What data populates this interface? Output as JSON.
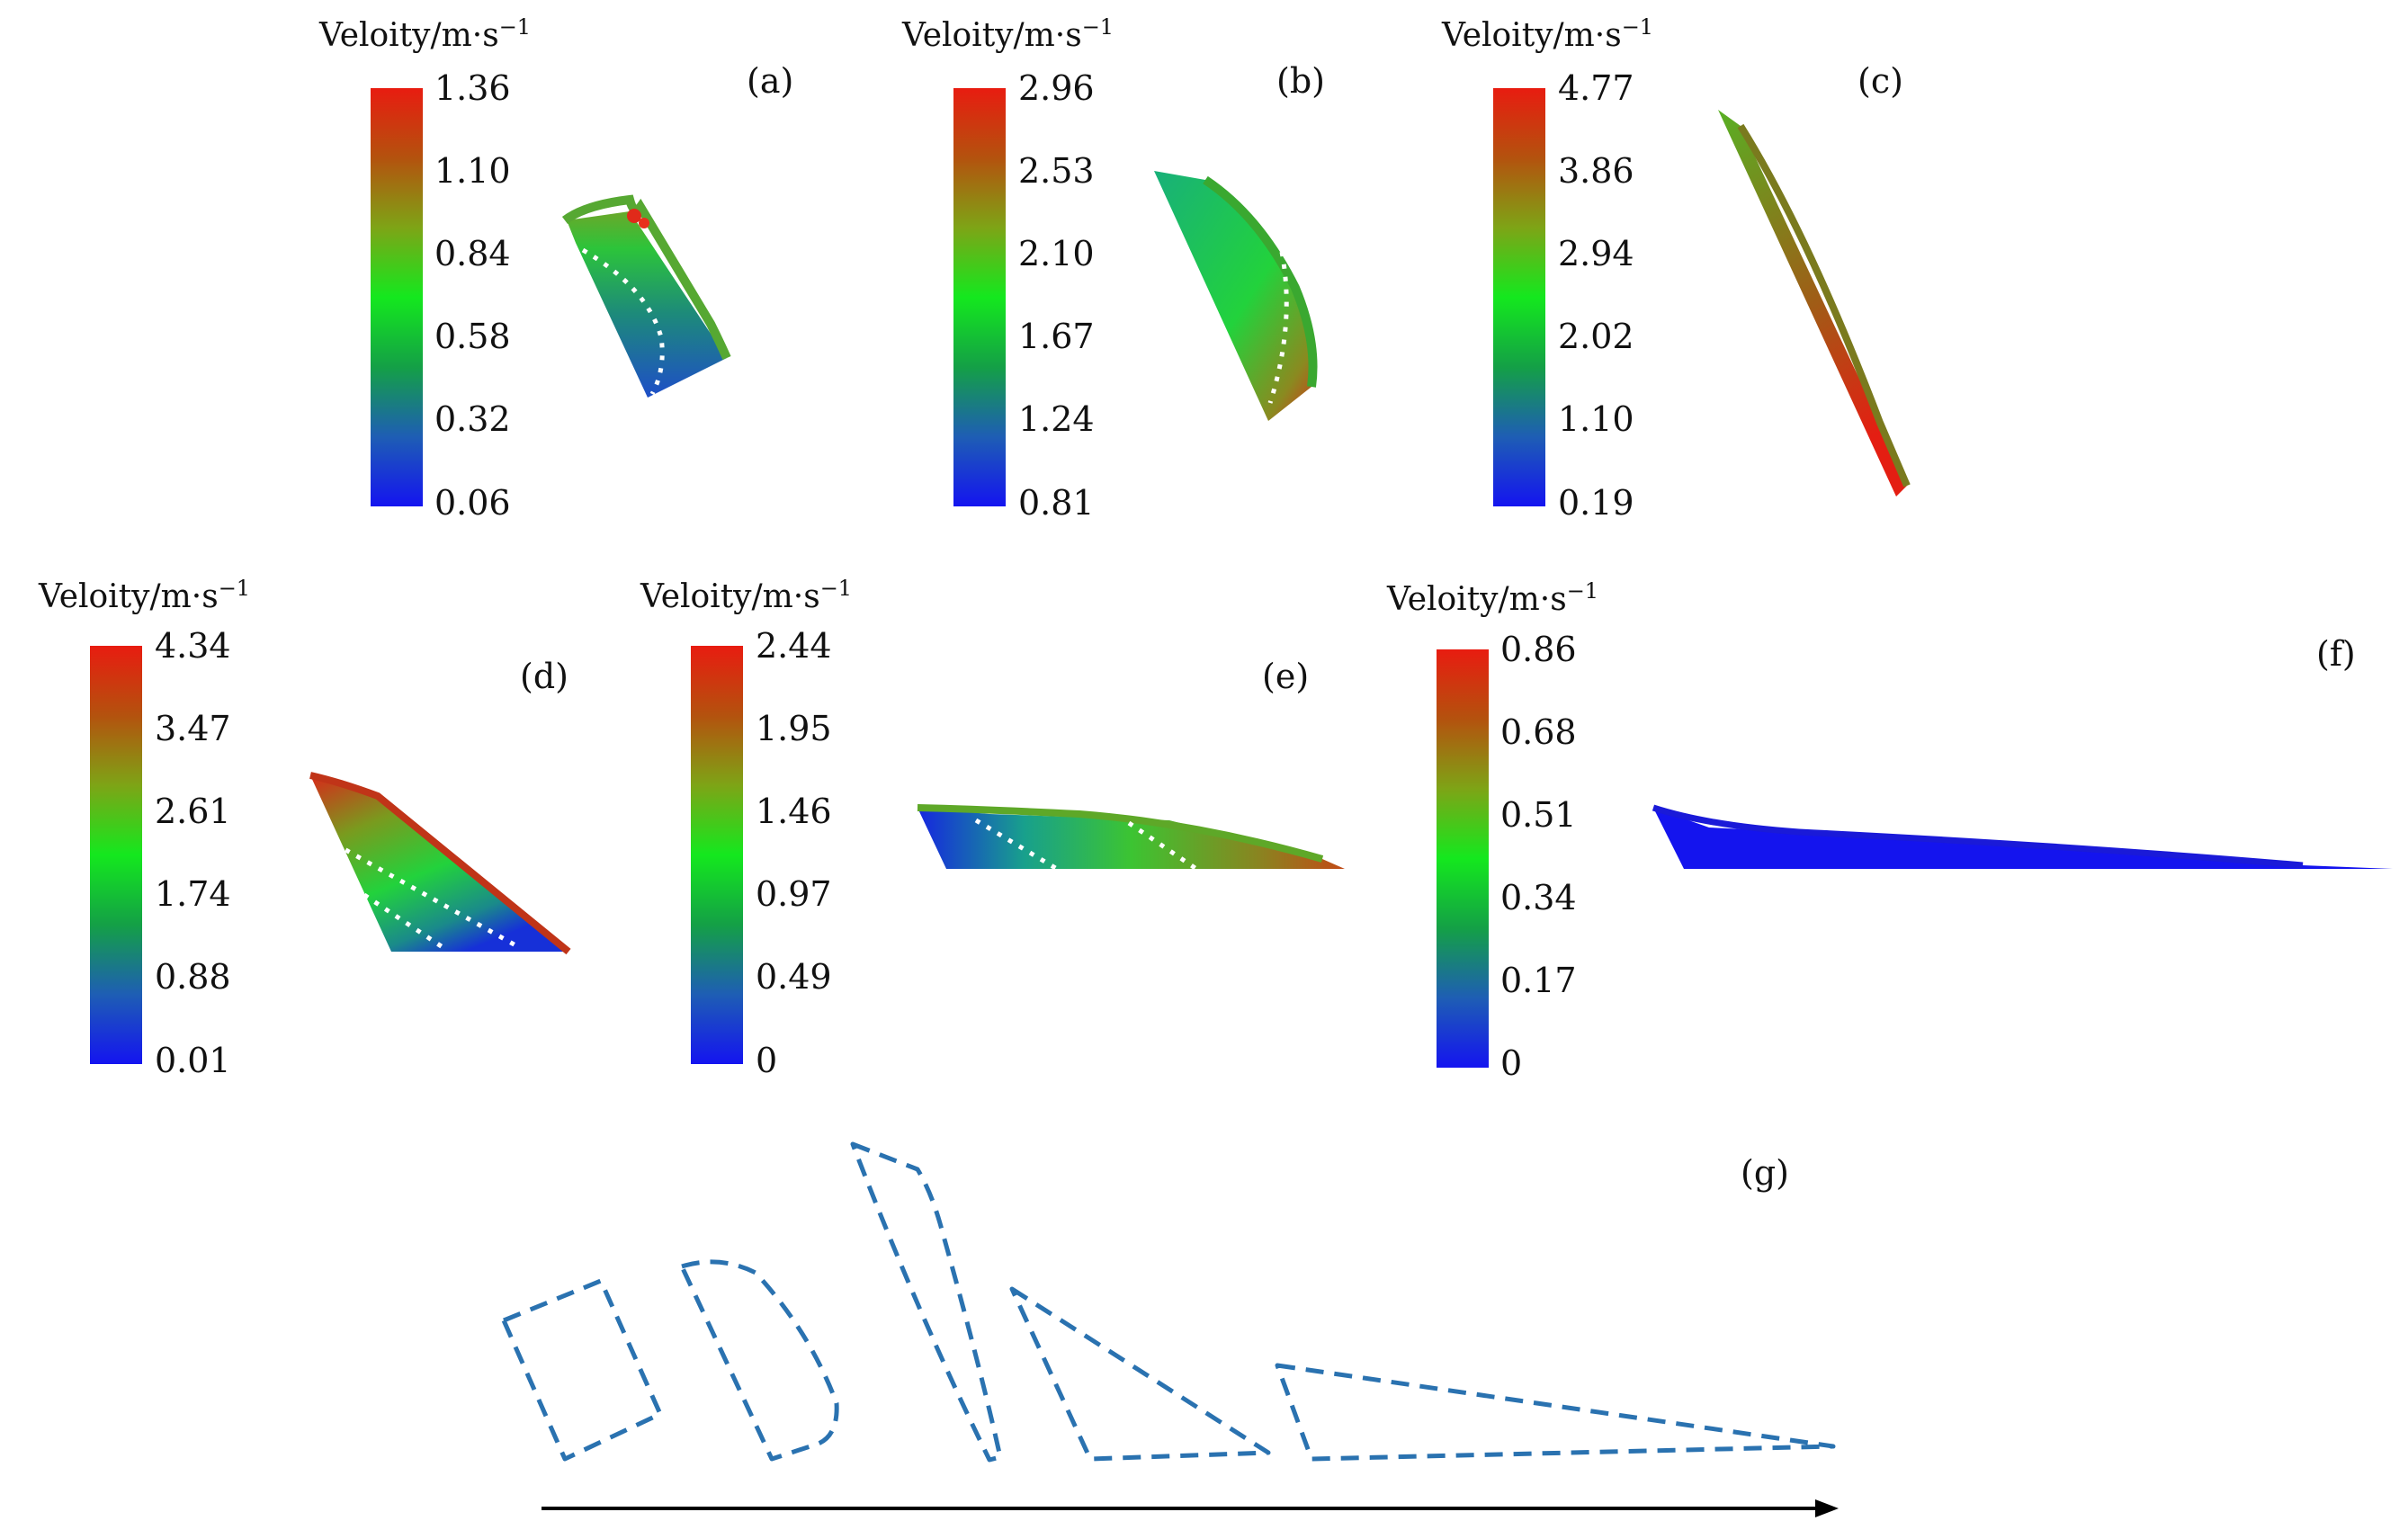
{
  "colorbar_title": "Veloity/m·s",
  "colorbar_title_exp": "−1",
  "panels": [
    {
      "label": "(a)",
      "ticks": [
        "1.36",
        "1.10",
        "0.84",
        "0.58",
        "0.32",
        "0.06"
      ]
    },
    {
      "label": "(b)",
      "ticks": [
        "2.96",
        "2.53",
        "2.10",
        "1.67",
        "1.24",
        "0.81"
      ]
    },
    {
      "label": "(c)",
      "ticks": [
        "4.77",
        "3.86",
        "2.94",
        "2.02",
        "1.10",
        "0.19"
      ]
    },
    {
      "label": "(d)",
      "ticks": [
        "4.34",
        "3.47",
        "2.61",
        "1.74",
        "0.88",
        "0.01"
      ]
    },
    {
      "label": "(e)",
      "ticks": [
        "2.44",
        "1.95",
        "1.46",
        "0.97",
        "0.49",
        "0"
      ]
    },
    {
      "label": "(f)",
      "ticks": [
        "0.86",
        "0.68",
        "0.51",
        "0.34",
        "0.17",
        "0"
      ]
    }
  ],
  "panel_g_label": "(g)",
  "colors": {
    "colormap": [
      "#e81c10",
      "#b4520e",
      "#7ea416",
      "#14e81e",
      "#14a046",
      "#1e5eb4",
      "#1414f0"
    ],
    "outline_dashed": "#2a72b0",
    "arrow": "#000000"
  }
}
